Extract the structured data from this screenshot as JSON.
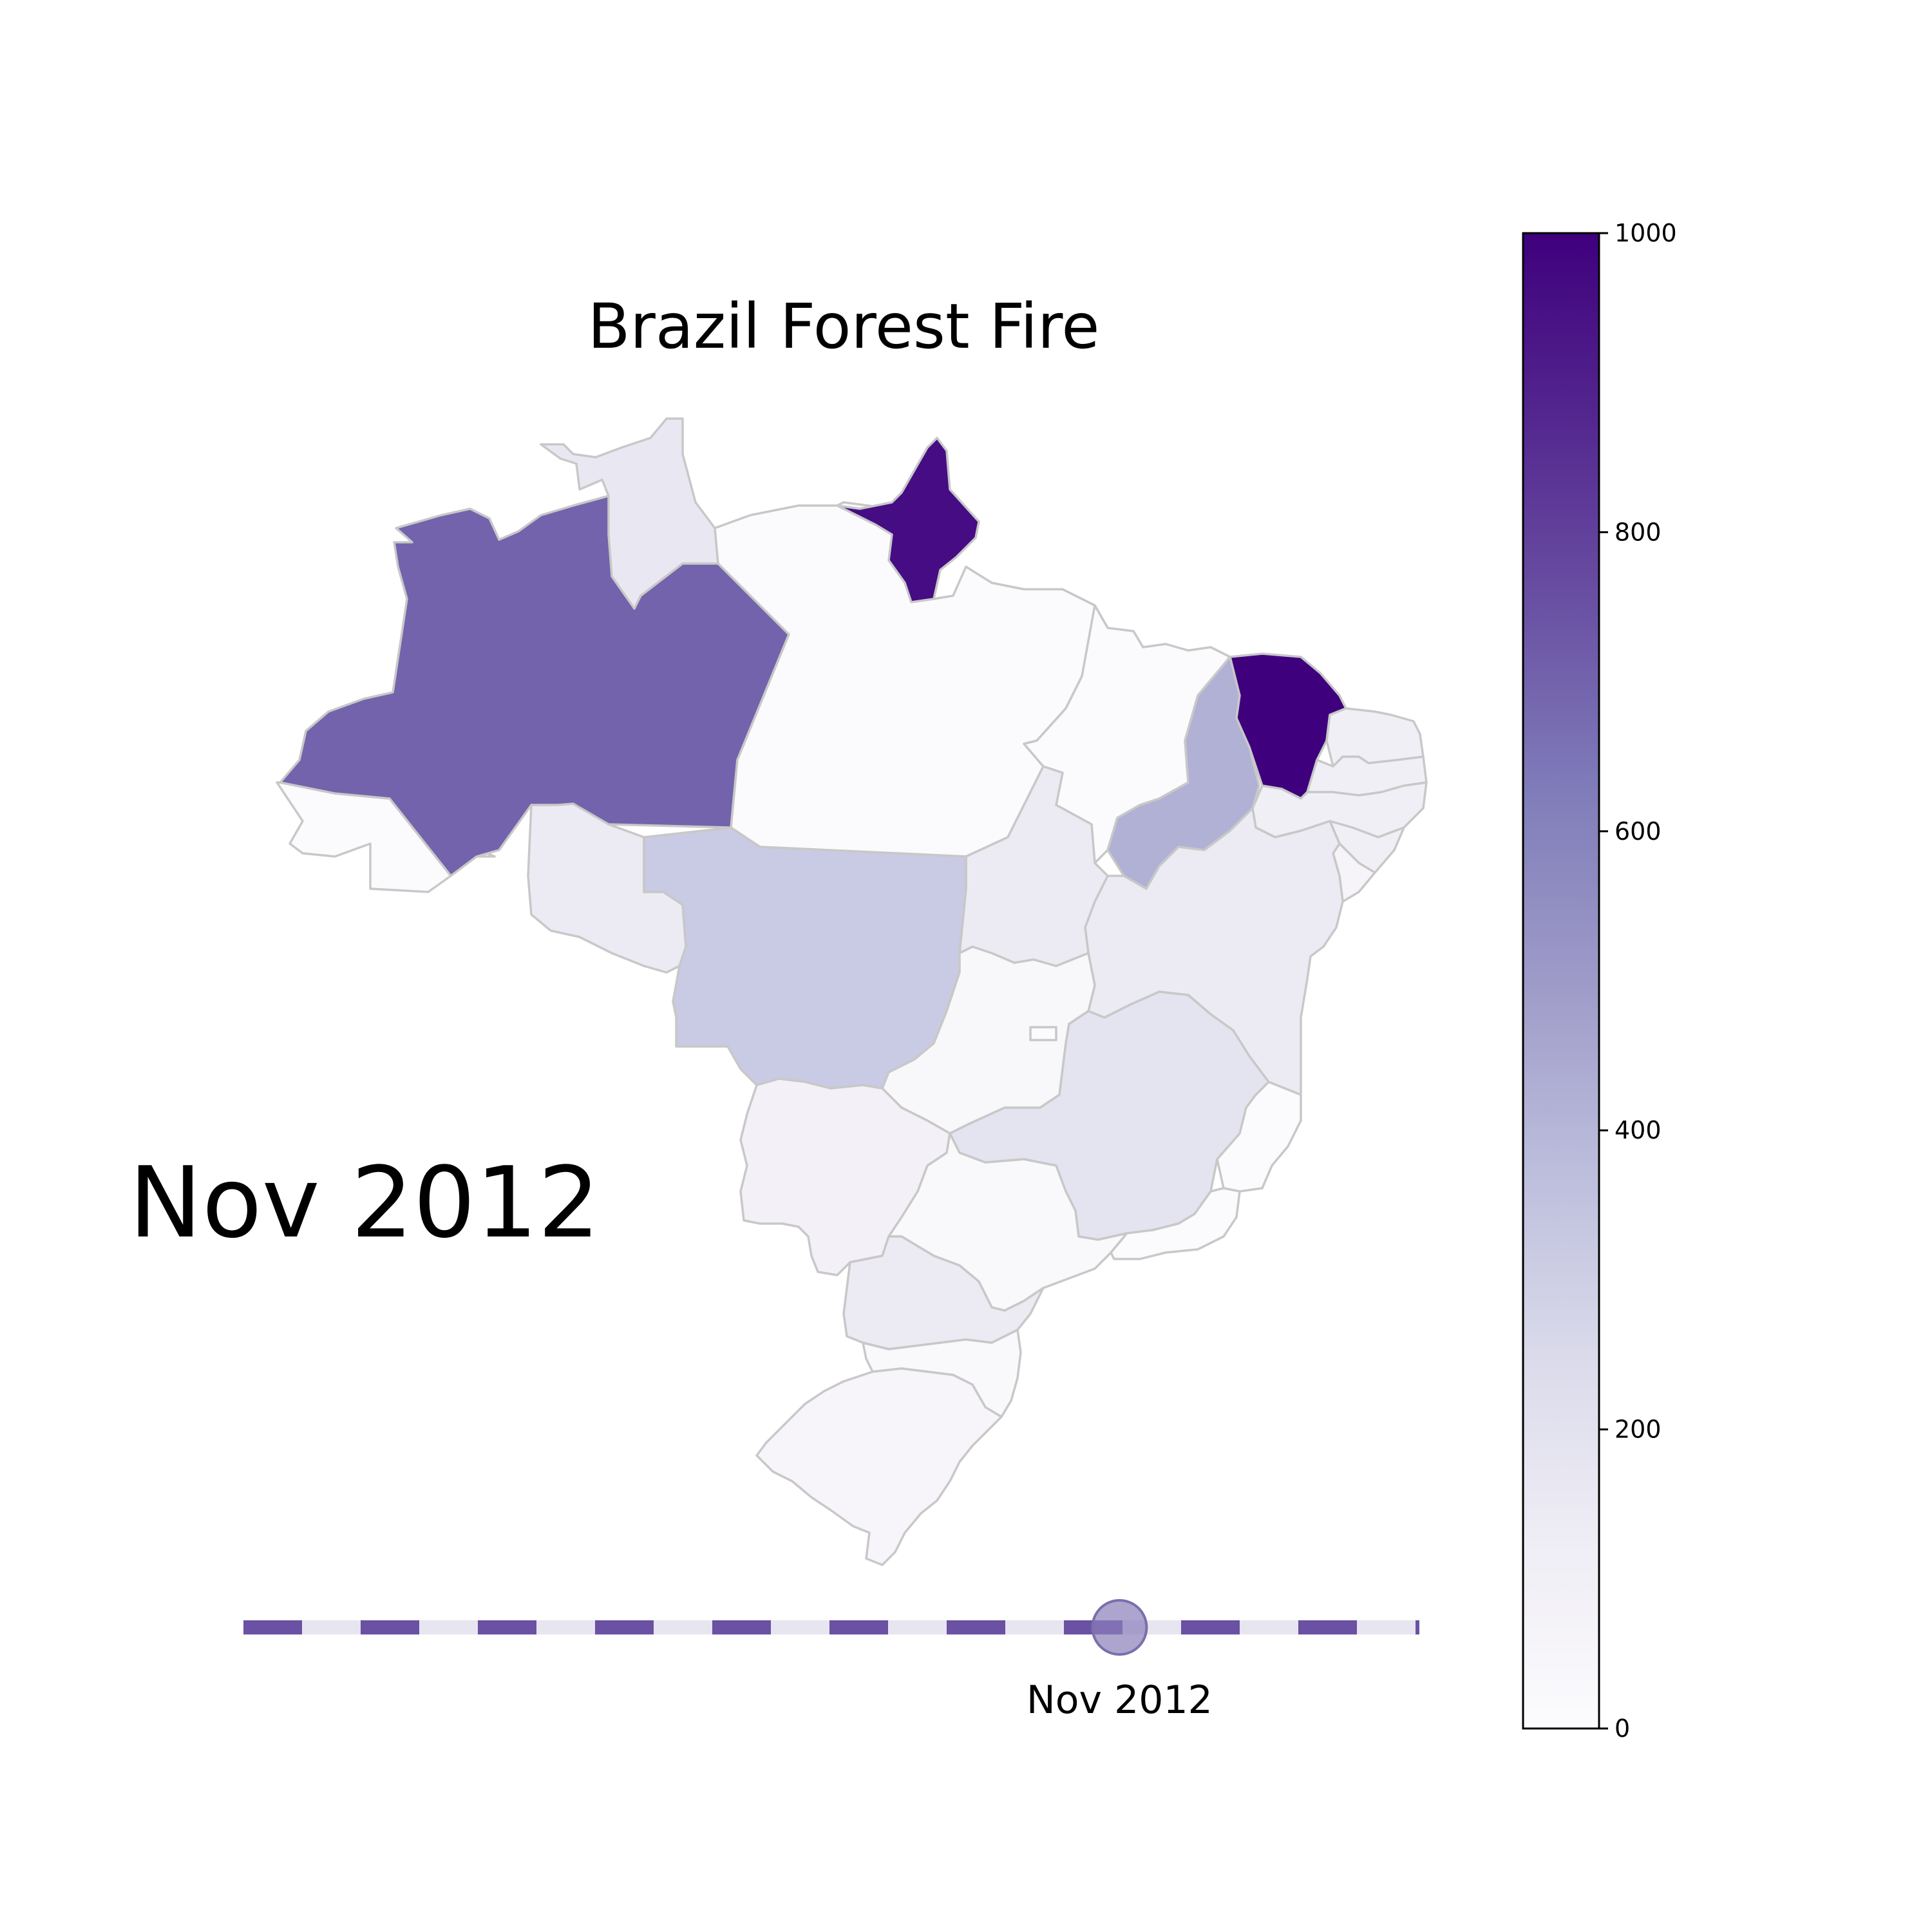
{
  "title": "Brazil Forest Fire",
  "current_period": "Nov 2012",
  "slider": {
    "label": "Nov 2012",
    "position_fraction": 0.745,
    "colors": {
      "active": "#6a51a3",
      "inactive": "#e7e5ef",
      "knob": "#8b7fbb"
    }
  },
  "colorbar": {
    "min": 0,
    "max": 1000,
    "ticks": [
      "0",
      "200",
      "400",
      "600",
      "800",
      "1000"
    ],
    "colormap": "Purples",
    "stops": [
      "#fcfbfd",
      "#efedf5",
      "#dadaeb",
      "#bcbddc",
      "#9e9ac8",
      "#807dba",
      "#6a51a3",
      "#54278f",
      "#3f007d"
    ]
  },
  "chart_data": {
    "type": "choropleth",
    "title": "Brazil Forest Fire",
    "period": "Nov 2012",
    "value_range": [
      0,
      1000
    ],
    "regions": [
      {
        "name": "Acre",
        "value": 5
      },
      {
        "name": "Amazonas",
        "value": 700
      },
      {
        "name": "Roraima",
        "value": 160
      },
      {
        "name": "Para",
        "value": 5
      },
      {
        "name": "Amapa",
        "value": 960
      },
      {
        "name": "Maranhao",
        "value": 5
      },
      {
        "name": "Piaui",
        "value": 420
      },
      {
        "name": "Ceara",
        "value": 1000
      },
      {
        "name": "Rio Grande do Norte",
        "value": 110
      },
      {
        "name": "Paraiba",
        "value": 110
      },
      {
        "name": "Pernambuco",
        "value": 110
      },
      {
        "name": "Alagoas",
        "value": 110
      },
      {
        "name": "Sergipe",
        "value": 60
      },
      {
        "name": "Bahia",
        "value": 140
      },
      {
        "name": "Tocantins",
        "value": 140
      },
      {
        "name": "Rondonia",
        "value": 140
      },
      {
        "name": "Mato Grosso",
        "value": 320
      },
      {
        "name": "Goias",
        "value": 40
      },
      {
        "name": "Distrito Federal",
        "value": 10
      },
      {
        "name": "Minas Gerais",
        "value": 190
      },
      {
        "name": "Espirito Santo",
        "value": 10
      },
      {
        "name": "Mato Grosso do Sul",
        "value": 90
      },
      {
        "name": "Sao Paulo",
        "value": 30
      },
      {
        "name": "Rio de Janeiro",
        "value": 10
      },
      {
        "name": "Parana",
        "value": 140
      },
      {
        "name": "Santa Catarina",
        "value": 30
      },
      {
        "name": "Rio Grande do Sul",
        "value": 50
      }
    ]
  }
}
